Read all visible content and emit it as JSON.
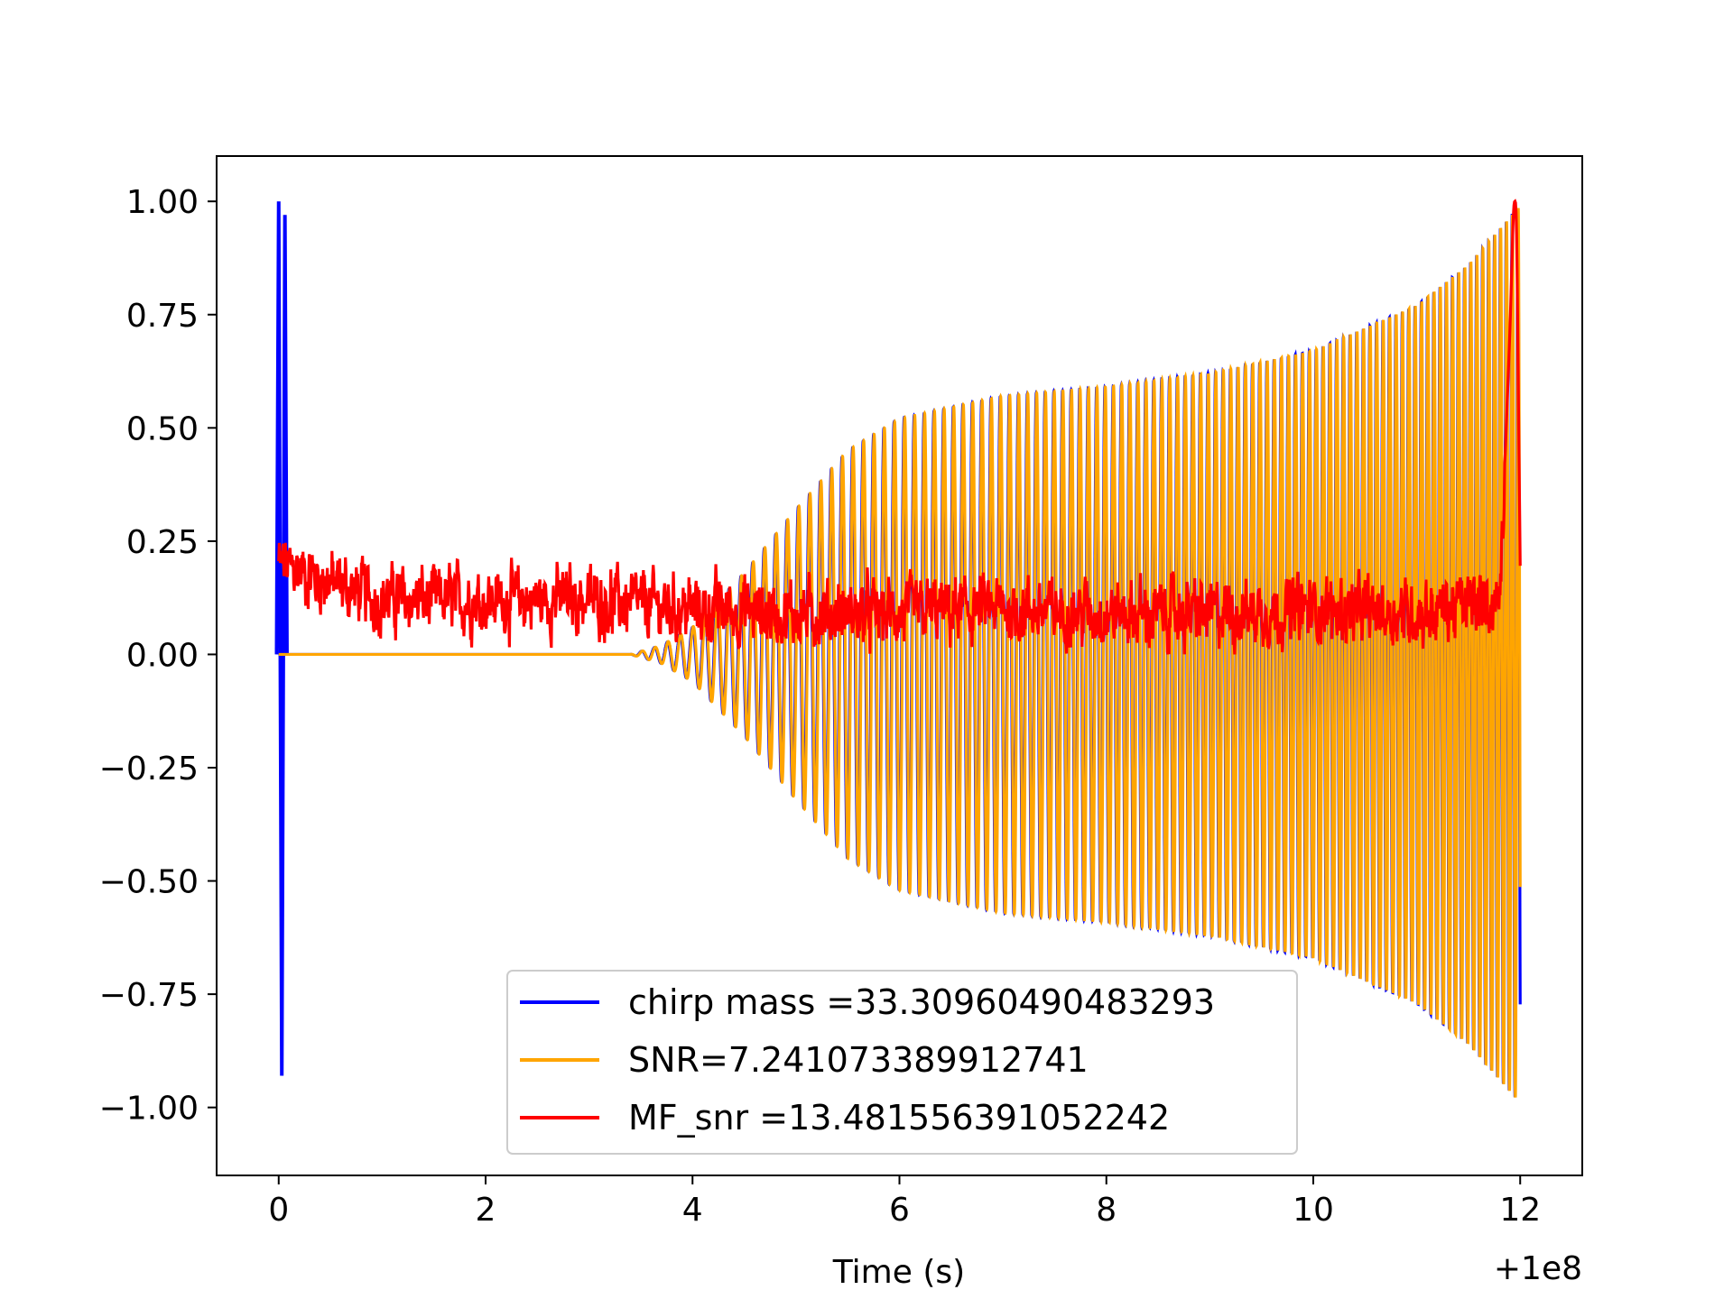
{
  "chart_data": {
    "type": "line",
    "title": "",
    "xlabel": "Time (s)",
    "ylabel": "",
    "x_offset_label": "+1e8",
    "xlim": [
      -0.6,
      12.6
    ],
    "ylim": [
      -1.15,
      1.1
    ],
    "x_ticks": [
      0,
      2,
      4,
      6,
      8,
      10,
      12
    ],
    "x_tick_labels": [
      "0",
      "2",
      "4",
      "6",
      "8",
      "10",
      "12"
    ],
    "y_ticks": [
      1.0,
      0.75,
      0.5,
      0.25,
      0.0,
      -0.25,
      -0.5,
      -0.75,
      -1.0
    ],
    "y_tick_labels": [
      "1.00",
      "0.75",
      "0.50",
      "0.25",
      "0.00",
      "−0.25",
      "−0.50",
      "−0.75",
      "−1.00"
    ],
    "grid": false,
    "legend_placement": "lower-center",
    "series": [
      {
        "name": "chirp mass =33.30960490483293",
        "color": "#0000ff",
        "description_points": {
          "envelope_x": [
            0,
            3.4,
            3.7,
            4.0,
            4.5,
            5.0,
            5.5,
            6.0,
            7.0,
            8.0,
            9.0,
            10.0,
            11.0,
            11.5,
            12.0
          ],
          "envelope_y": [
            0.0,
            0.0,
            0.02,
            0.06,
            0.18,
            0.32,
            0.45,
            0.52,
            0.57,
            0.59,
            0.62,
            0.67,
            0.77,
            0.86,
            0.99
          ],
          "early_spike": [
            [
              0.0,
              1.0
            ],
            [
              0.03,
              -0.93
            ],
            [
              0.06,
              0.97
            ]
          ]
        }
      },
      {
        "name": "SNR=7.241073389912741",
        "color": "#ffa500",
        "description_points": {
          "envelope_x": [
            0,
            3.4,
            3.7,
            4.0,
            4.5,
            5.0,
            5.5,
            6.0,
            7.0,
            8.0,
            9.0,
            10.0,
            11.0,
            11.5,
            12.0
          ],
          "envelope_y": [
            0.0,
            0.0,
            0.02,
            0.06,
            0.18,
            0.32,
            0.45,
            0.52,
            0.57,
            0.59,
            0.62,
            0.67,
            0.77,
            0.86,
            0.99
          ]
        }
      },
      {
        "name": "MF_snr =13.481556391052242",
        "color": "#ff0000",
        "description_points": {
          "baseline_x": [
            0,
            1,
            2,
            3,
            4,
            5,
            6,
            7,
            8,
            9,
            10,
            11,
            11.8,
            11.95,
            12.0
          ],
          "baseline_y": [
            0.2,
            0.12,
            0.12,
            0.12,
            0.1,
            0.09,
            0.09,
            0.1,
            0.09,
            0.09,
            0.1,
            0.09,
            0.12,
            1.0,
            0.2
          ]
        }
      }
    ]
  }
}
